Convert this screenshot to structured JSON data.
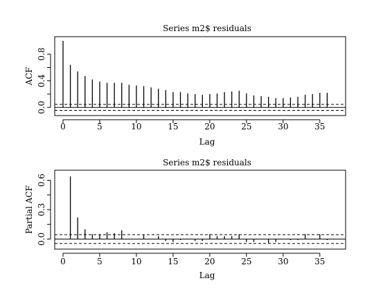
{
  "chart_data": [
    {
      "type": "bar",
      "subtype": "acf",
      "title": "Series m2$ residuals",
      "xlabel": "Lag",
      "ylabel": "ACF",
      "xlim": [
        0,
        37
      ],
      "ylim": [
        -0.06,
        1.0
      ],
      "xticks": [
        0,
        5,
        10,
        15,
        20,
        25,
        30,
        35
      ],
      "yticks": [
        0.0,
        0.4,
        0.8
      ],
      "ytick_labels": [
        "0.0",
        "0.4",
        "0.8"
      ],
      "yticks_minor": [
        0.2,
        0.6
      ],
      "ci": [
        0.045,
        -0.045
      ],
      "x": [
        0,
        1,
        2,
        3,
        4,
        5,
        6,
        7,
        8,
        9,
        10,
        11,
        12,
        13,
        14,
        15,
        16,
        17,
        18,
        19,
        20,
        21,
        22,
        23,
        24,
        25,
        26,
        27,
        28,
        29,
        30,
        31,
        32,
        33,
        34,
        35,
        36
      ],
      "values": [
        1.0,
        0.64,
        0.54,
        0.47,
        0.42,
        0.39,
        0.37,
        0.37,
        0.37,
        0.34,
        0.33,
        0.32,
        0.3,
        0.28,
        0.26,
        0.23,
        0.23,
        0.21,
        0.2,
        0.19,
        0.2,
        0.21,
        0.23,
        0.24,
        0.25,
        0.21,
        0.18,
        0.17,
        0.16,
        0.14,
        0.14,
        0.15,
        0.16,
        0.19,
        0.2,
        0.22,
        0.22
      ]
    },
    {
      "type": "bar",
      "subtype": "pacf",
      "title": "Series m2$ residuals",
      "xlabel": "Lag",
      "ylabel": "Partial ACF",
      "xlim": [
        0,
        37
      ],
      "ylim": [
        -0.06,
        0.66
      ],
      "xticks": [
        0,
        5,
        10,
        15,
        20,
        25,
        30,
        35
      ],
      "yticks": [
        0.0,
        0.3,
        0.6
      ],
      "ytick_labels": [
        "0.0",
        "0.3",
        "0.6"
      ],
      "yticks_minor": [
        0.15,
        0.45
      ],
      "ci": [
        0.045,
        -0.045
      ],
      "x": [
        1,
        2,
        3,
        4,
        5,
        6,
        7,
        8,
        9,
        10,
        11,
        12,
        13,
        14,
        15,
        16,
        17,
        18,
        19,
        20,
        21,
        22,
        23,
        24,
        25,
        26,
        27,
        28,
        29,
        30,
        31,
        32,
        33,
        34,
        35,
        36
      ],
      "values": [
        0.64,
        0.22,
        0.1,
        0.05,
        0.05,
        0.07,
        0.06,
        0.09,
        0.0,
        0.0,
        0.04,
        0.0,
        0.03,
        -0.02,
        -0.03,
        -0.01,
        0.0,
        -0.02,
        -0.02,
        0.05,
        0.03,
        0.03,
        0.03,
        0.05,
        -0.03,
        -0.03,
        0.0,
        -0.04,
        -0.03,
        0.0,
        -0.01,
        -0.01,
        0.05,
        0.0,
        0.05,
        -0.01
      ]
    }
  ]
}
